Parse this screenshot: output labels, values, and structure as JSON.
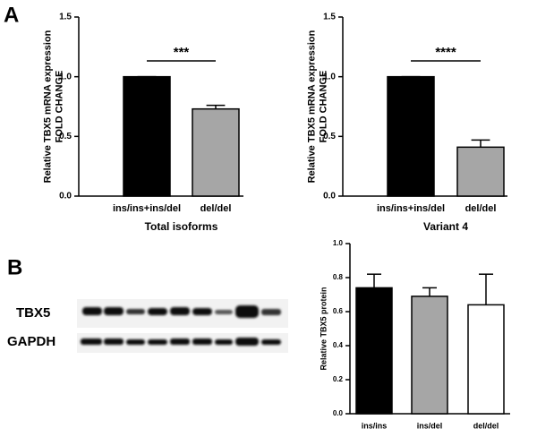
{
  "panels": [
    "A",
    "B"
  ],
  "blot_labels": [
    "TBX5",
    "GAPDH"
  ],
  "chart_data": [
    {
      "type": "bar",
      "ylabel": [
        "Relative TBX5 mRNA expression",
        "FOLD CHANGE"
      ],
      "xlabel": "Total isoforms",
      "categories": [
        "ins/ins+ins/del",
        "del/del"
      ],
      "values": [
        1.0,
        0.73
      ],
      "errors": [
        0,
        0.03
      ],
      "colors": [
        "#000000",
        "#a6a6a6"
      ],
      "annotation": "***",
      "ylim": [
        0,
        1.5
      ],
      "yticks": [
        {
          "value": 0,
          "label": "0.0"
        },
        0.5,
        {
          "value": 1,
          "label": "1.0"
        },
        1.5
      ]
    },
    {
      "type": "bar",
      "ylabel": [
        "Relative TBX5 mRNA expression",
        "FOLD CHANGE"
      ],
      "xlabel": "Variant 4",
      "categories": [
        "ins/ins+ins/del",
        "del/del"
      ],
      "values": [
        1.0,
        0.41
      ],
      "errors": [
        0,
        0.06
      ],
      "colors": [
        "#000000",
        "#a6a6a6"
      ],
      "annotation": "****",
      "ylim": [
        0,
        1.5
      ],
      "yticks": [
        {
          "value": 0,
          "label": "0.0"
        },
        0.5,
        {
          "value": 1,
          "label": "1.0"
        },
        1.5
      ]
    },
    {
      "type": "bar",
      "ylabel": [
        "Relative TBX5 protein"
      ],
      "categories": [
        "ins/ins",
        "ins/del",
        "del/del"
      ],
      "values": [
        0.74,
        0.69,
        0.64
      ],
      "errors": [
        0.08,
        0.05,
        0.18
      ],
      "colors": [
        "#000000",
        "#a6a6a6",
        "#ffffff"
      ],
      "ylim": [
        0,
        1
      ],
      "yticks": [
        {
          "value": 0,
          "label": "0.0"
        },
        0.2,
        0.4,
        0.6,
        0.8,
        {
          "value": 1,
          "label": "1.0"
        }
      ]
    }
  ]
}
